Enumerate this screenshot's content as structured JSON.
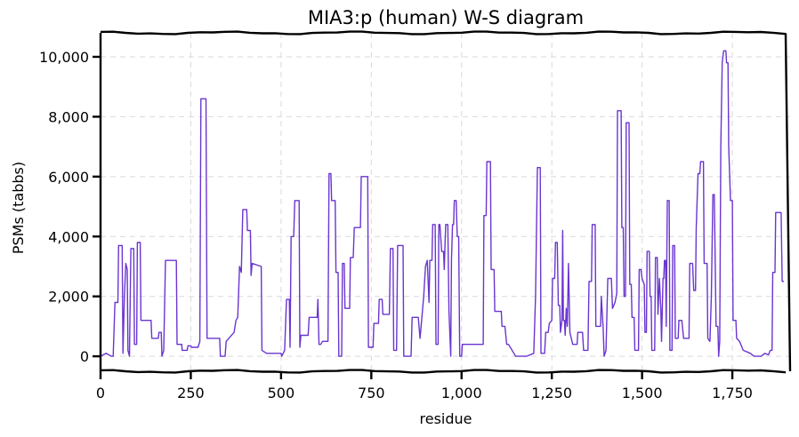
{
  "chart_data": {
    "type": "line",
    "title": "MIA3:p (human) W-S diagram",
    "xlabel": "residue",
    "ylabel": "PSMs (tabbs)",
    "xlim": [
      0,
      1910
    ],
    "ylim": [
      -500,
      10800
    ],
    "x_ticks": [
      0,
      250,
      500,
      750,
      1000,
      1250,
      1500,
      1750
    ],
    "x_tick_labels": [
      "0",
      "250",
      "500",
      "750",
      "1,000",
      "1,250",
      "1,500",
      "1,750"
    ],
    "y_ticks": [
      0,
      2000,
      4000,
      6000,
      8000,
      10000
    ],
    "y_tick_labels": [
      "0",
      "2,000",
      "4,000",
      "6,000",
      "8,000",
      "10,000"
    ],
    "grid": true,
    "series": [
      {
        "color": "#6a35d0",
        "points": [
          [
            0,
            0
          ],
          [
            15,
            100
          ],
          [
            30,
            0
          ],
          [
            35,
            0
          ],
          [
            40,
            1800
          ],
          [
            48,
            1800
          ],
          [
            50,
            3700
          ],
          [
            60,
            3700
          ],
          [
            62,
            100
          ],
          [
            66,
            2000
          ],
          [
            70,
            3100
          ],
          [
            74,
            2900
          ],
          [
            76,
            200
          ],
          [
            80,
            0
          ],
          [
            84,
            3600
          ],
          [
            92,
            3600
          ],
          [
            94,
            400
          ],
          [
            100,
            400
          ],
          [
            102,
            3800
          ],
          [
            110,
            3800
          ],
          [
            112,
            1200
          ],
          [
            140,
            1200
          ],
          [
            142,
            600
          ],
          [
            160,
            600
          ],
          [
            162,
            800
          ],
          [
            168,
            800
          ],
          [
            170,
            0
          ],
          [
            175,
            200
          ],
          [
            180,
            3200
          ],
          [
            210,
            3200
          ],
          [
            212,
            400
          ],
          [
            225,
            400
          ],
          [
            226,
            200
          ],
          [
            240,
            200
          ],
          [
            242,
            350
          ],
          [
            250,
            350
          ],
          [
            252,
            300
          ],
          [
            270,
            300
          ],
          [
            275,
            500
          ],
          [
            278,
            8600
          ],
          [
            292,
            8600
          ],
          [
            295,
            600
          ],
          [
            330,
            600
          ],
          [
            332,
            0
          ],
          [
            345,
            0
          ],
          [
            348,
            500
          ],
          [
            370,
            800
          ],
          [
            375,
            1200
          ],
          [
            380,
            1300
          ],
          [
            385,
            3000
          ],
          [
            390,
            2800
          ],
          [
            394,
            4900
          ],
          [
            405,
            4900
          ],
          [
            407,
            4200
          ],
          [
            415,
            4200
          ],
          [
            417,
            2700
          ],
          [
            420,
            3100
          ],
          [
            445,
            3000
          ],
          [
            447,
            200
          ],
          [
            460,
            100
          ],
          [
            480,
            100
          ],
          [
            500,
            100
          ],
          [
            502,
            0
          ],
          [
            510,
            200
          ],
          [
            515,
            1900
          ],
          [
            523,
            1900
          ],
          [
            525,
            300
          ],
          [
            528,
            4000
          ],
          [
            535,
            4000
          ],
          [
            538,
            5200
          ],
          [
            550,
            5200
          ],
          [
            552,
            300
          ],
          [
            555,
            700
          ],
          [
            575,
            700
          ],
          [
            578,
            1300
          ],
          [
            600,
            1300
          ],
          [
            602,
            1900
          ],
          [
            605,
            400
          ],
          [
            610,
            400
          ],
          [
            615,
            500
          ],
          [
            630,
            500
          ],
          [
            633,
            6100
          ],
          [
            638,
            6100
          ],
          [
            640,
            5200
          ],
          [
            650,
            5200
          ],
          [
            652,
            2800
          ],
          [
            658,
            2800
          ],
          [
            660,
            0
          ],
          [
            668,
            0
          ],
          [
            670,
            3100
          ],
          [
            675,
            3100
          ],
          [
            677,
            1600
          ],
          [
            690,
            1600
          ],
          [
            692,
            3300
          ],
          [
            700,
            3300
          ],
          [
            703,
            4300
          ],
          [
            720,
            4300
          ],
          [
            722,
            6000
          ],
          [
            740,
            6000
          ],
          [
            742,
            300
          ],
          [
            755,
            300
          ],
          [
            757,
            1100
          ],
          [
            770,
            1100
          ],
          [
            772,
            1900
          ],
          [
            780,
            1900
          ],
          [
            782,
            1400
          ],
          [
            800,
            1400
          ],
          [
            803,
            3600
          ],
          [
            810,
            3600
          ],
          [
            812,
            200
          ],
          [
            820,
            200
          ],
          [
            823,
            3700
          ],
          [
            838,
            3700
          ],
          [
            840,
            0
          ],
          [
            860,
            0
          ],
          [
            863,
            1300
          ],
          [
            880,
            1300
          ],
          [
            885,
            600
          ],
          [
            895,
            2000
          ],
          [
            900,
            3000
          ],
          [
            905,
            3200
          ],
          [
            910,
            1800
          ],
          [
            912,
            3200
          ],
          [
            918,
            3200
          ],
          [
            920,
            4400
          ],
          [
            927,
            4400
          ],
          [
            929,
            400
          ],
          [
            935,
            400
          ],
          [
            937,
            4400
          ],
          [
            940,
            4400
          ],
          [
            945,
            3500
          ],
          [
            950,
            3500
          ],
          [
            952,
            2900
          ],
          [
            956,
            4400
          ],
          [
            962,
            4400
          ],
          [
            965,
            1500
          ],
          [
            970,
            0
          ],
          [
            972,
            3200
          ],
          [
            975,
            4400
          ],
          [
            978,
            4400
          ],
          [
            980,
            5200
          ],
          [
            985,
            5200
          ],
          [
            988,
            4000
          ],
          [
            992,
            4000
          ],
          [
            995,
            0
          ],
          [
            1000,
            0
          ],
          [
            1002,
            400
          ],
          [
            1010,
            400
          ],
          [
            1060,
            400
          ],
          [
            1062,
            4700
          ],
          [
            1068,
            4700
          ],
          [
            1070,
            6500
          ],
          [
            1080,
            6500
          ],
          [
            1082,
            2900
          ],
          [
            1090,
            2900
          ],
          [
            1092,
            1500
          ],
          [
            1110,
            1500
          ],
          [
            1112,
            1000
          ],
          [
            1120,
            1000
          ],
          [
            1125,
            400
          ],
          [
            1130,
            400
          ],
          [
            1150,
            0
          ],
          [
            1160,
            0
          ],
          [
            1180,
            0
          ],
          [
            1200,
            100
          ],
          [
            1205,
            2000
          ],
          [
            1210,
            6300
          ],
          [
            1218,
            6300
          ],
          [
            1220,
            100
          ],
          [
            1230,
            100
          ],
          [
            1233,
            800
          ],
          [
            1240,
            800
          ],
          [
            1243,
            1100
          ],
          [
            1250,
            1200
          ],
          [
            1252,
            2600
          ],
          [
            1258,
            2600
          ],
          [
            1260,
            3800
          ],
          [
            1265,
            3800
          ],
          [
            1268,
            1700
          ],
          [
            1272,
            1700
          ],
          [
            1274,
            800
          ],
          [
            1278,
            1200
          ],
          [
            1280,
            4200
          ],
          [
            1282,
            1200
          ],
          [
            1285,
            1200
          ],
          [
            1287,
            700
          ],
          [
            1290,
            1600
          ],
          [
            1293,
            1000
          ],
          [
            1296,
            3100
          ],
          [
            1300,
            800
          ],
          [
            1308,
            400
          ],
          [
            1320,
            400
          ],
          [
            1322,
            800
          ],
          [
            1335,
            800
          ],
          [
            1338,
            200
          ],
          [
            1350,
            200
          ],
          [
            1353,
            2500
          ],
          [
            1360,
            2500
          ],
          [
            1362,
            4400
          ],
          [
            1370,
            4400
          ],
          [
            1372,
            1000
          ],
          [
            1385,
            1000
          ],
          [
            1387,
            2000
          ],
          [
            1392,
            1000
          ],
          [
            1395,
            0
          ],
          [
            1400,
            200
          ],
          [
            1405,
            2600
          ],
          [
            1415,
            2600
          ],
          [
            1418,
            1600
          ],
          [
            1425,
            1800
          ],
          [
            1430,
            2100
          ],
          [
            1432,
            8200
          ],
          [
            1442,
            8200
          ],
          [
            1444,
            4300
          ],
          [
            1448,
            4300
          ],
          [
            1450,
            2000
          ],
          [
            1454,
            2000
          ],
          [
            1456,
            7800
          ],
          [
            1464,
            7800
          ],
          [
            1466,
            2400
          ],
          [
            1470,
            2400
          ],
          [
            1472,
            1300
          ],
          [
            1478,
            1300
          ],
          [
            1480,
            200
          ],
          [
            1490,
            200
          ],
          [
            1492,
            2900
          ],
          [
            1497,
            2900
          ],
          [
            1500,
            2600
          ],
          [
            1506,
            2400
          ],
          [
            1508,
            800
          ],
          [
            1512,
            800
          ],
          [
            1514,
            3500
          ],
          [
            1520,
            3500
          ],
          [
            1522,
            2000
          ],
          [
            1525,
            2000
          ],
          [
            1527,
            200
          ],
          [
            1535,
            200
          ],
          [
            1537,
            3300
          ],
          [
            1542,
            3300
          ],
          [
            1544,
            1400
          ],
          [
            1548,
            2600
          ],
          [
            1552,
            1600
          ],
          [
            1554,
            500
          ],
          [
            1558,
            2600
          ],
          [
            1560,
            2600
          ],
          [
            1562,
            3200
          ],
          [
            1565,
            3200
          ],
          [
            1567,
            1000
          ],
          [
            1570,
            5200
          ],
          [
            1575,
            5200
          ],
          [
            1577,
            200
          ],
          [
            1583,
            200
          ],
          [
            1585,
            3700
          ],
          [
            1590,
            3700
          ],
          [
            1592,
            600
          ],
          [
            1600,
            600
          ],
          [
            1602,
            1200
          ],
          [
            1610,
            1200
          ],
          [
            1615,
            600
          ],
          [
            1625,
            600
          ],
          [
            1630,
            600
          ],
          [
            1632,
            3100
          ],
          [
            1640,
            3100
          ],
          [
            1643,
            2200
          ],
          [
            1648,
            2200
          ],
          [
            1650,
            4300
          ],
          [
            1655,
            6100
          ],
          [
            1660,
            6100
          ],
          [
            1662,
            6500
          ],
          [
            1670,
            6500
          ],
          [
            1672,
            3100
          ],
          [
            1680,
            3100
          ],
          [
            1682,
            600
          ],
          [
            1688,
            500
          ],
          [
            1692,
            2000
          ],
          [
            1696,
            5400
          ],
          [
            1700,
            5400
          ],
          [
            1705,
            1000
          ],
          [
            1710,
            1000
          ],
          [
            1712,
            0
          ],
          [
            1715,
            500
          ],
          [
            1718,
            7000
          ],
          [
            1722,
            9800
          ],
          [
            1726,
            10200
          ],
          [
            1732,
            10200
          ],
          [
            1734,
            9800
          ],
          [
            1738,
            9800
          ],
          [
            1740,
            7000
          ],
          [
            1745,
            5200
          ],
          [
            1750,
            5200
          ],
          [
            1752,
            1200
          ],
          [
            1760,
            1200
          ],
          [
            1762,
            600
          ],
          [
            1770,
            500
          ],
          [
            1780,
            200
          ],
          [
            1800,
            100
          ],
          [
            1810,
            0
          ],
          [
            1830,
            0
          ],
          [
            1840,
            100
          ],
          [
            1850,
            50
          ],
          [
            1855,
            200
          ],
          [
            1860,
            200
          ],
          [
            1862,
            2800
          ],
          [
            1868,
            2800
          ],
          [
            1870,
            4800
          ],
          [
            1885,
            4800
          ],
          [
            1888,
            2500
          ],
          [
            1893,
            2500
          ]
        ]
      }
    ]
  }
}
